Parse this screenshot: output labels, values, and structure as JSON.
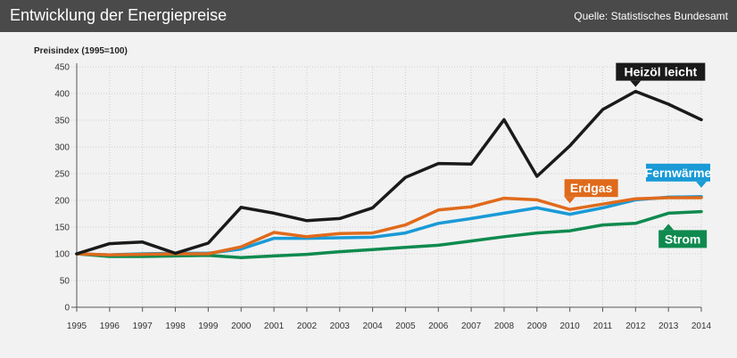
{
  "header": {
    "title": "Entwicklung der Energiepreise",
    "source": "Quelle: Statistisches Bundesamt"
  },
  "chart_data": {
    "type": "line",
    "ylabel": "Preisindex (1995=100)",
    "ylim": [
      0,
      450
    ],
    "yticks": [
      0,
      50,
      100,
      150,
      200,
      250,
      300,
      350,
      400,
      450
    ],
    "x": [
      1995,
      1996,
      1997,
      1998,
      1999,
      2000,
      2001,
      2002,
      2003,
      2004,
      2005,
      2006,
      2007,
      2008,
      2009,
      2010,
      2011,
      2012,
      2013,
      2014
    ],
    "grid": true,
    "legend": "inline labels",
    "series": [
      {
        "name": "Heizöl leicht",
        "color": "#1a1a1a",
        "values": [
          100,
          119,
          122,
          101,
          120,
          187,
          176,
          162,
          166,
          186,
          243,
          269,
          268,
          351,
          245,
          302,
          370,
          404,
          380,
          351
        ]
      },
      {
        "name": "Erdgas",
        "color": "#e06a1b",
        "values": [
          100,
          98,
          99,
          100,
          100,
          113,
          140,
          132,
          138,
          139,
          154,
          182,
          188,
          204,
          201,
          183,
          193,
          203,
          205,
          205
        ]
      },
      {
        "name": "Fernwärme",
        "color": "#1a9ad6",
        "values": [
          100,
          98,
          100,
          101,
          101,
          109,
          129,
          129,
          130,
          131,
          139,
          157,
          166,
          176,
          186,
          174,
          186,
          201,
          206,
          207
        ]
      },
      {
        "name": "Strom",
        "color": "#0f8a4f",
        "values": [
          100,
          95,
          95,
          96,
          97,
          93,
          96,
          99,
          104,
          108,
          112,
          116,
          124,
          132,
          139,
          143,
          154,
          157,
          176,
          179
        ]
      }
    ]
  }
}
